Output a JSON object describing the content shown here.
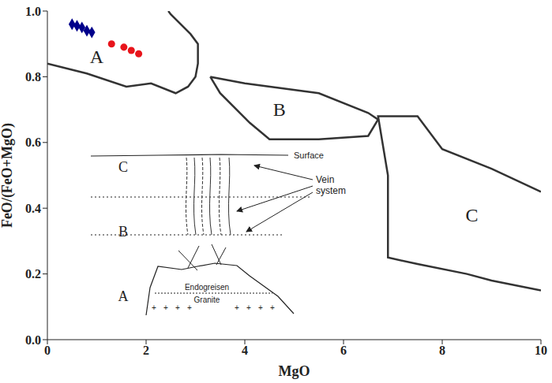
{
  "chart_data": {
    "type": "scatter",
    "x_label": "MgO",
    "y_label": "FeO/(FeO+MgO)",
    "xlim": [
      0,
      10
    ],
    "xticks": [
      0,
      2,
      4,
      6,
      8,
      10
    ],
    "ylim": [
      0,
      1
    ],
    "yticks": [
      {
        "value": 0,
        "label": "0.0"
      },
      {
        "value": 0.2,
        "label": "0.2"
      },
      {
        "value": 0.4,
        "label": "0.4"
      },
      {
        "value": 0.6,
        "label": "0.6"
      },
      {
        "value": 0.8,
        "label": "0.8"
      },
      {
        "value": 1,
        "label": "1.0"
      }
    ],
    "grid": false,
    "series": [
      {
        "color": "#00008b",
        "marker": "diamond",
        "x": [
          0.5,
          0.6,
          0.7,
          0.8,
          0.9
        ],
        "y": [
          0.96,
          0.955,
          0.95,
          0.94,
          0.935
        ]
      },
      {
        "color": "#e8141b",
        "marker": "circle",
        "x": [
          1.3,
          1.55,
          1.7,
          1.85
        ],
        "y": [
          0.9,
          0.89,
          0.88,
          0.87
        ]
      }
    ],
    "fields": [
      {
        "label": "A",
        "label_x": 1.0,
        "label_y": 0.86,
        "x": [
          0,
          0.8,
          1.6,
          2.1,
          2.6,
          2.85,
          3.0,
          3.05,
          3.05,
          2.9,
          2.5,
          2.45
        ],
        "y": [
          0.84,
          0.81,
          0.77,
          0.78,
          0.75,
          0.77,
          0.8,
          0.84,
          0.9,
          0.93,
          0.99,
          1.0
        ]
      },
      {
        "label": "B",
        "label_x": 4.7,
        "label_y": 0.7,
        "x": [
          3.3,
          4.0,
          5.5,
          6.5,
          6.7,
          6.5,
          5.5,
          4.5,
          4.1,
          3.5,
          3.3
        ],
        "y": [
          0.8,
          0.78,
          0.75,
          0.69,
          0.67,
          0.62,
          0.61,
          0.61,
          0.66,
          0.75,
          0.8
        ]
      },
      {
        "label": "C",
        "label_x": 8.6,
        "label_y": 0.38,
        "x": [
          10,
          9,
          8,
          7.5,
          6.7,
          6.9,
          6.9,
          7.5,
          8.5,
          9,
          10
        ],
        "y": [
          0.45,
          0.52,
          0.58,
          0.68,
          0.68,
          0.5,
          0.25,
          0.23,
          0.2,
          0.18,
          0.15
        ]
      }
    ],
    "inset": {
      "zones": [
        "C",
        "B",
        "A"
      ],
      "surface": "Surface",
      "veins": "Vein system",
      "endogreisen": "Endogreisen",
      "granite": "Granite"
    }
  }
}
